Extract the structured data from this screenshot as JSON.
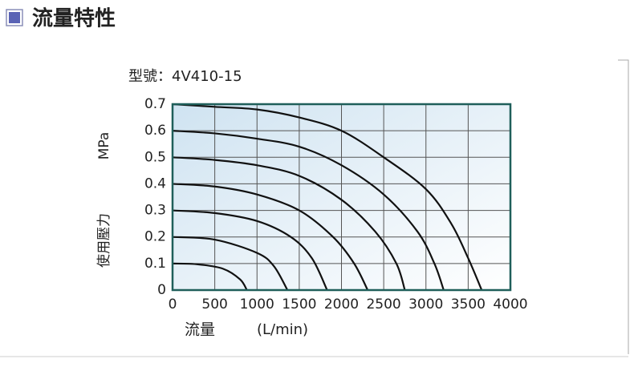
{
  "header": {
    "title": "流量特性"
  },
  "chart_data": {
    "type": "line",
    "subtitle": "型號：4V410-15",
    "xlabel": "流量",
    "xunit": "(L/min)",
    "ylabel": "使用壓力",
    "yunit": "MPa",
    "xlim": [
      0,
      4000
    ],
    "ylim": [
      0,
      0.7
    ],
    "xticks": [
      0,
      500,
      1000,
      1500,
      2000,
      2500,
      3000,
      3500,
      4000
    ],
    "yticks": [
      0,
      0.1,
      0.2,
      0.3,
      0.4,
      0.5,
      0.6,
      0.7
    ],
    "grid": true,
    "series": [
      {
        "color": "#111111",
        "x": [
          0,
          300,
          600,
          800,
          880
        ],
        "values": [
          0.1,
          0.097,
          0.08,
          0.04,
          0
        ]
      },
      {
        "color": "#111111",
        "x": [
          0,
          500,
          1000,
          1200,
          1360
        ],
        "values": [
          0.2,
          0.19,
          0.14,
          0.09,
          0
        ]
      },
      {
        "color": "#111111",
        "x": [
          0,
          500,
          1000,
          1400,
          1650,
          1830
        ],
        "values": [
          0.3,
          0.29,
          0.26,
          0.2,
          0.12,
          0
        ]
      },
      {
        "color": "#111111",
        "x": [
          0,
          500,
          1000,
          1500,
          1900,
          2150,
          2310
        ],
        "values": [
          0.4,
          0.39,
          0.36,
          0.3,
          0.2,
          0.1,
          0
        ]
      },
      {
        "color": "#111111",
        "x": [
          0,
          500,
          1000,
          1500,
          2000,
          2400,
          2650,
          2750
        ],
        "values": [
          0.5,
          0.49,
          0.47,
          0.43,
          0.34,
          0.22,
          0.1,
          0
        ]
      },
      {
        "color": "#111111",
        "x": [
          0,
          500,
          1000,
          1500,
          2000,
          2500,
          2900,
          3100,
          3210
        ],
        "values": [
          0.6,
          0.59,
          0.57,
          0.54,
          0.47,
          0.36,
          0.22,
          0.1,
          0
        ]
      },
      {
        "color": "#111111",
        "x": [
          0,
          500,
          1000,
          1500,
          2000,
          2500,
          3000,
          3300,
          3500,
          3660
        ],
        "values": [
          0.7,
          0.69,
          0.68,
          0.65,
          0.6,
          0.5,
          0.38,
          0.25,
          0.12,
          0
        ]
      }
    ]
  }
}
